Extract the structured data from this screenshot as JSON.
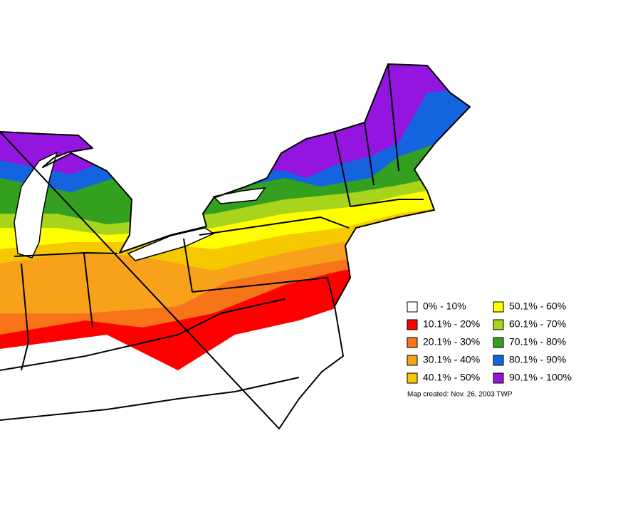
{
  "legend": {
    "items": [
      {
        "label": "0% - 10%",
        "color": "#ffffff"
      },
      {
        "label": "10.1% - 20%",
        "color": "#ff0000"
      },
      {
        "label": "20.1% - 30%",
        "color": "#f87418"
      },
      {
        "label": "30.1% - 40%",
        "color": "#f8a21c"
      },
      {
        "label": "40.1% - 50%",
        "color": "#f5c800"
      },
      {
        "label": "50.1% - 60%",
        "color": "#ffff00"
      },
      {
        "label": "60.1% - 70%",
        "color": "#a8d41c"
      },
      {
        "label": "70.1% - 80%",
        "color": "#34a020"
      },
      {
        "label": "80.1% - 90%",
        "color": "#1464e0"
      },
      {
        "label": "90.1% - 100%",
        "color": "#9414e0"
      }
    ]
  },
  "note": "Map created: Nov. 26, 2003 TWP"
}
